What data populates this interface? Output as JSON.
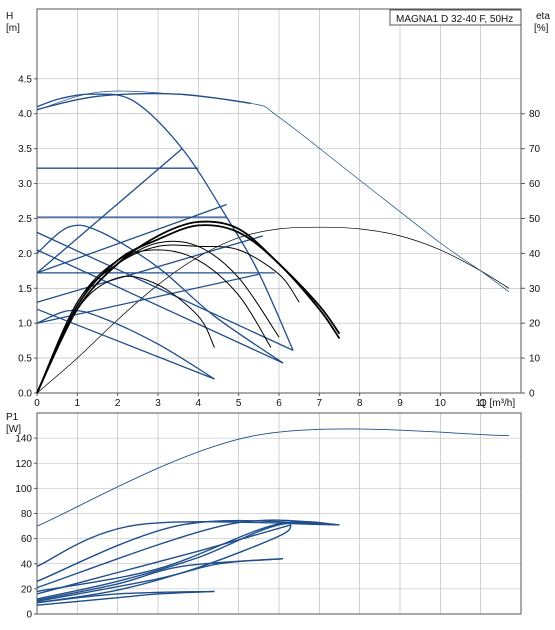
{
  "chart_data": [
    {
      "type": "line",
      "title": "MAGNA1 D 32-40 F, 50Hz",
      "xlabel": "Q [m³/h]",
      "ylabel_left_name": "H",
      "ylabel_left_unit": "[m]",
      "ylabel_right_name": "eta",
      "ylabel_right_unit": "[%]",
      "xlim": [
        0,
        12
      ],
      "ylim": [
        0,
        5.5
      ],
      "y2lim": [
        0,
        110
      ],
      "x_ticks": [
        0,
        1,
        2,
        3,
        4,
        5,
        6,
        7,
        8,
        9,
        10,
        11
      ],
      "y_ticks": [
        0.0,
        0.5,
        1.0,
        1.5,
        2.0,
        2.5,
        3.0,
        3.5,
        4.0,
        4.5
      ],
      "y2_ticks": [
        0,
        10,
        20,
        30,
        40,
        50,
        60,
        70,
        80
      ],
      "grid": true,
      "colors": {
        "blue": "#1f4e8c",
        "black": "#000000",
        "grid": "#b4b4b4"
      },
      "series_head_blue": [
        {
          "points": [
            [
              0,
              4.1
            ],
            [
              0.6,
              4.22
            ],
            [
              1.4,
              4.28
            ],
            [
              2.4,
              4.18
            ],
            [
              3.6,
              3.5
            ],
            [
              4.7,
              2.52
            ],
            [
              5.5,
              1.72
            ],
            [
              6.35,
              0.61
            ]
          ]
        },
        {
          "points": [
            [
              0,
              4.06
            ],
            [
              1.5,
              4.25
            ],
            [
              3.5,
              4.28
            ],
            [
              5.3,
              4.15
            ]
          ]
        },
        {
          "points": [
            [
              0,
              3.22
            ],
            [
              4.0,
              3.22
            ]
          ]
        },
        {
          "points": [
            [
              0,
              2.52
            ],
            [
              4.7,
              2.52
            ]
          ]
        },
        {
          "points": [
            [
              0,
              1.72
            ],
            [
              5.9,
              1.72
            ]
          ]
        },
        {
          "points": [
            [
              0,
              1.72
            ],
            [
              3.6,
              3.5
            ]
          ]
        },
        {
          "points": [
            [
              0,
              1.72
            ],
            [
              4.7,
              2.7
            ]
          ]
        },
        {
          "points": [
            [
              0,
              1.3
            ],
            [
              5.6,
              2.25
            ]
          ]
        },
        {
          "points": [
            [
              0,
              1.0
            ],
            [
              5.5,
              1.7
            ]
          ]
        },
        {
          "points": [
            [
              0,
              2.3
            ],
            [
              6.35,
              0.61
            ]
          ]
        },
        {
          "points": [
            [
              0,
              2.05
            ],
            [
              6.1,
              0.43
            ]
          ]
        },
        {
          "points": [
            [
              0,
              1.2
            ],
            [
              4.4,
              0.2
            ]
          ]
        },
        {
          "points": [
            [
              0,
              2.0
            ],
            [
              0.8,
              2.38
            ],
            [
              1.6,
              2.3
            ],
            [
              3.0,
              1.8
            ],
            [
              4.4,
              1.1
            ],
            [
              6.1,
              0.43
            ]
          ]
        },
        {
          "points": [
            [
              0,
              1.0
            ],
            [
              0.8,
              1.18
            ],
            [
              1.6,
              1.08
            ],
            [
              3.0,
              0.7
            ],
            [
              4.4,
              0.2
            ]
          ]
        }
      ],
      "series_head_black": [
        {
          "points": [
            [
              0,
              0
            ],
            [
              1.0,
              1.2
            ],
            [
              2.0,
              1.85
            ],
            [
              3.0,
              2.25
            ],
            [
              4.0,
              2.45
            ],
            [
              5.0,
              2.35
            ],
            [
              6.0,
              1.85
            ],
            [
              7.0,
              1.25
            ],
            [
              7.5,
              0.85
            ]
          ]
        },
        {
          "points": [
            [
              0,
              0
            ],
            [
              1.0,
              1.25
            ],
            [
              2.0,
              1.9
            ],
            [
              3.0,
              2.2
            ],
            [
              4.0,
              2.4
            ],
            [
              5.0,
              2.3
            ],
            [
              6.0,
              1.85
            ],
            [
              7.0,
              1.2
            ],
            [
              7.5,
              0.78
            ]
          ]
        },
        {
          "points": [
            [
              0,
              0
            ],
            [
              1.0,
              1.3
            ],
            [
              2.0,
              1.85
            ],
            [
              3.0,
              2.1
            ],
            [
              4.0,
              2.1
            ],
            [
              5.0,
              2.05
            ],
            [
              6.0,
              1.7
            ],
            [
              6.5,
              1.3
            ]
          ]
        },
        {
          "points": [
            [
              0,
              0
            ],
            [
              1.0,
              1.3
            ],
            [
              2.0,
              1.85
            ],
            [
              3.0,
              2.15
            ],
            [
              4.0,
              2.1
            ],
            [
              5.0,
              1.65
            ],
            [
              6.0,
              0.8
            ]
          ]
        },
        {
          "points": [
            [
              0,
              0
            ],
            [
              1.0,
              1.3
            ],
            [
              2.0,
              1.9
            ],
            [
              3.0,
              2.05
            ],
            [
              4.0,
              1.9
            ],
            [
              5.0,
              1.4
            ],
            [
              5.8,
              0.65
            ]
          ]
        },
        {
          "points": [
            [
              0,
              0
            ],
            [
              1.0,
              1.2
            ],
            [
              2.0,
              1.65
            ],
            [
              3.0,
              1.55
            ],
            [
              4.0,
              1.1
            ],
            [
              4.4,
              0.65
            ]
          ]
        }
      ],
      "series_eta": [
        {
          "color": "#000000",
          "points": [
            [
              0,
              0
            ],
            [
              1.0,
              10
            ],
            [
              2.0,
              21
            ],
            [
              3.0,
              31
            ],
            [
              4.0,
              39
            ],
            [
              5.0,
              44.5
            ],
            [
              6.0,
              47
            ],
            [
              7.0,
              47.5
            ],
            [
              8.0,
              47
            ],
            [
              9.0,
              45
            ],
            [
              10.0,
              41
            ],
            [
              11.0,
              35
            ],
            [
              11.7,
              30
            ]
          ]
        },
        {
          "color": "#1f4e8c",
          "points": [
            [
              0,
              81
            ],
            [
              1.4,
              86
            ],
            [
              3.0,
              86
            ],
            [
              5.3,
              83
            ],
            [
              6.0,
              79
            ],
            [
              8.0,
              61
            ],
            [
              10.0,
              43
            ],
            [
              11.0,
              35
            ],
            [
              11.7,
              29
            ]
          ]
        }
      ]
    },
    {
      "type": "line",
      "xlabel": "",
      "ylabel_left_name": "P1",
      "ylabel_left_unit": "[W]",
      "xlim": [
        0,
        12
      ],
      "ylim": [
        0,
        160
      ],
      "y_ticks": [
        0,
        20,
        40,
        60,
        80,
        100,
        120,
        140
      ],
      "grid": true,
      "series_power_blue": [
        {
          "points": [
            [
              0,
              70
            ],
            [
              5.4,
              142
            ],
            [
              11.7,
              142
            ]
          ]
        },
        {
          "points": [
            [
              0,
              38
            ],
            [
              2.5,
              71
            ],
            [
              7.5,
              71
            ]
          ]
        },
        {
          "points": [
            [
              0,
              26
            ],
            [
              3.6,
              71
            ],
            [
              7.5,
              71
            ]
          ]
        },
        {
          "points": [
            [
              0,
              21
            ],
            [
              4.7,
              71
            ],
            [
              7.5,
              71
            ]
          ]
        },
        {
          "points": [
            [
              0,
              18
            ],
            [
              3.0,
              36
            ],
            [
              5.9,
              71
            ],
            [
              7.5,
              71
            ]
          ]
        },
        {
          "points": [
            [
              0,
              12
            ],
            [
              2.0,
              26
            ],
            [
              4.0,
              45
            ],
            [
              6.0,
              71
            ],
            [
              7.5,
              71
            ]
          ]
        },
        {
          "points": [
            [
              0,
              16
            ],
            [
              2.0,
              33
            ],
            [
              4.0,
              50
            ],
            [
              6.3,
              71
            ]
          ]
        },
        {
          "points": [
            [
              0,
              9
            ],
            [
              2.0,
              19
            ],
            [
              4.0,
              37
            ],
            [
              6.0,
              62
            ],
            [
              6.3,
              71
            ]
          ]
        },
        {
          "points": [
            [
              0,
              11
            ],
            [
              2.0,
              24
            ],
            [
              3.6,
              38
            ],
            [
              6.1,
              44
            ]
          ]
        },
        {
          "points": [
            [
              0,
              10
            ],
            [
              3.0,
              28
            ],
            [
              4.5,
              40
            ],
            [
              6.1,
              44
            ]
          ]
        },
        {
          "points": [
            [
              0,
              7
            ],
            [
              2.0,
              13
            ],
            [
              3.0,
              16
            ],
            [
              4.4,
              18
            ]
          ]
        },
        {
          "points": [
            [
              0,
              9
            ],
            [
              2.0,
              16
            ],
            [
              4.4,
              18
            ]
          ]
        }
      ]
    }
  ]
}
